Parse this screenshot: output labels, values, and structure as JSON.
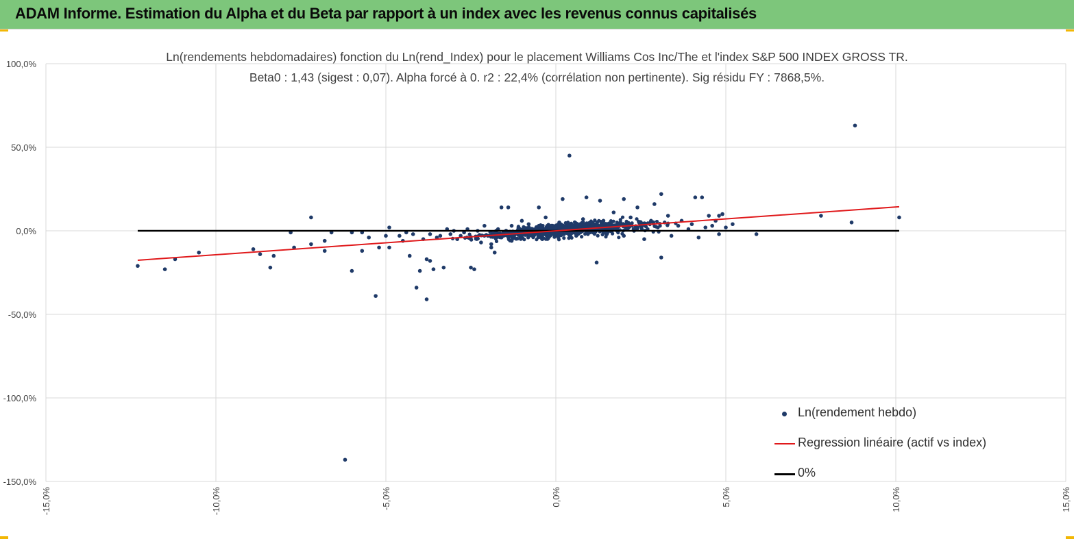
{
  "header": {
    "title": "ADAM Informe. Estimation du Alpha et du Beta par rapport à un index avec les revenus connus capitalisés"
  },
  "colors": {
    "banner": "#7dc67b",
    "accent_corner": "#f2b705",
    "points": "#1f3a68",
    "regression": "#e0191b",
    "zero_line": "#000000",
    "grid": "#d9d9d9"
  },
  "chart_data": {
    "type": "scatter",
    "title_line1": "Ln(rendements hebdomadaires) fonction du Ln(rend_Index) pour le placement Williams Cos Inc/The et l'index S&P 500 INDEX GROSS TR.",
    "title_line2": "Beta0 : 1,43 (sigest : 0,07). Alpha forcé à 0. r2 : 22,4% (corrélation non pertinente). Sig résidu FY : 7868,5%.",
    "xlim": [
      -15,
      15
    ],
    "ylim": [
      -150,
      100
    ],
    "x_ticks": [
      -15,
      -10,
      -5,
      0,
      5,
      10,
      15
    ],
    "y_ticks": [
      100,
      50,
      0,
      -50,
      -100,
      -150
    ],
    "x_tick_labels": [
      "-15,0%",
      "-10,0%",
      "-5,0%",
      "0,0%",
      "5,0%",
      "10,0%",
      "15,0%"
    ],
    "y_tick_labels": [
      "100,0%",
      "50,0%",
      "0,0%",
      "-50,0%",
      "-100,0%",
      "-150,0%"
    ],
    "series": [
      {
        "name": "Ln(rendement hebdo)",
        "kind": "scatter",
        "points": [
          [
            -12.3,
            -21
          ],
          [
            -11.5,
            -23
          ],
          [
            -11.2,
            -17
          ],
          [
            -10.5,
            -13
          ],
          [
            -8.9,
            -11
          ],
          [
            -8.7,
            -14
          ],
          [
            -8.4,
            -22
          ],
          [
            -8.3,
            -15
          ],
          [
            -7.8,
            -1
          ],
          [
            -7.7,
            -10
          ],
          [
            -7.2,
            8
          ],
          [
            -7.2,
            -8
          ],
          [
            -6.8,
            -6
          ],
          [
            -6.8,
            -12
          ],
          [
            -6.6,
            -1
          ],
          [
            -6.0,
            -1
          ],
          [
            -6.0,
            -24
          ],
          [
            -5.7,
            -12
          ],
          [
            -5.7,
            -1
          ],
          [
            -5.5,
            -4
          ],
          [
            -5.3,
            -39
          ],
          [
            -5.2,
            -10
          ],
          [
            -5.0,
            -3
          ],
          [
            -4.9,
            -10
          ],
          [
            -4.9,
            2
          ],
          [
            -4.6,
            -3
          ],
          [
            -4.5,
            -6
          ],
          [
            -4.4,
            -1
          ],
          [
            -4.3,
            -15
          ],
          [
            -4.2,
            -2
          ],
          [
            -4.1,
            -34
          ],
          [
            -4.0,
            -24
          ],
          [
            -3.9,
            -5
          ],
          [
            -3.8,
            -17
          ],
          [
            -3.8,
            -41
          ],
          [
            -3.7,
            -2
          ],
          [
            -3.7,
            -18
          ],
          [
            -3.6,
            -23
          ],
          [
            -3.5,
            -4
          ],
          [
            -3.4,
            -3
          ],
          [
            -3.3,
            -22
          ],
          [
            -3.2,
            1
          ],
          [
            -3.1,
            -2
          ],
          [
            -3.0,
            0
          ],
          [
            -2.9,
            -5
          ],
          [
            -2.8,
            -3
          ],
          [
            -2.7,
            -1
          ],
          [
            -2.6,
            1
          ],
          [
            -2.5,
            -22
          ],
          [
            -2.5,
            -5
          ],
          [
            -2.4,
            -23
          ],
          [
            -2.3,
            0
          ],
          [
            -2.2,
            -7
          ],
          [
            -2.1,
            3
          ],
          [
            -2.0,
            -3
          ],
          [
            -1.9,
            -10
          ],
          [
            -1.9,
            -8
          ],
          [
            -1.8,
            -13
          ],
          [
            -1.7,
            1
          ],
          [
            -1.6,
            -4
          ],
          [
            -1.6,
            14
          ],
          [
            -1.4,
            14
          ],
          [
            -1.5,
            -2
          ],
          [
            -1.3,
            3
          ],
          [
            -1.3,
            -6
          ],
          [
            -1.2,
            -1
          ],
          [
            -1.1,
            2
          ],
          [
            -1.0,
            6
          ],
          [
            -1.0,
            -3
          ],
          [
            -0.9,
            1
          ],
          [
            -0.8,
            4
          ],
          [
            -0.7,
            -2
          ],
          [
            -0.6,
            0
          ],
          [
            -0.5,
            3
          ],
          [
            -0.5,
            14
          ],
          [
            -0.4,
            -5
          ],
          [
            -0.3,
            8
          ],
          [
            -0.2,
            1
          ],
          [
            -0.1,
            -1
          ],
          [
            0.0,
            2
          ],
          [
            0.1,
            5
          ],
          [
            0.2,
            19
          ],
          [
            0.2,
            -2
          ],
          [
            0.3,
            1
          ],
          [
            0.4,
            45
          ],
          [
            0.5,
            3
          ],
          [
            0.6,
            -3
          ],
          [
            0.7,
            0
          ],
          [
            0.8,
            7
          ],
          [
            0.9,
            2
          ],
          [
            0.9,
            20
          ],
          [
            1.0,
            -1
          ],
          [
            1.1,
            4
          ],
          [
            1.2,
            -19
          ],
          [
            1.3,
            18
          ],
          [
            1.3,
            1
          ],
          [
            1.4,
            6
          ],
          [
            1.5,
            -2
          ],
          [
            1.6,
            3
          ],
          [
            1.7,
            11
          ],
          [
            1.8,
            0
          ],
          [
            1.9,
            5
          ],
          [
            2.0,
            19
          ],
          [
            2.0,
            -3
          ],
          [
            2.1,
            2
          ],
          [
            2.2,
            8
          ],
          [
            2.3,
            0
          ],
          [
            2.4,
            14
          ],
          [
            2.5,
            3
          ],
          [
            2.6,
            -5
          ],
          [
            2.7,
            1
          ],
          [
            2.8,
            6
          ],
          [
            2.9,
            16
          ],
          [
            3.1,
            22
          ],
          [
            3.1,
            -16
          ],
          [
            3.0,
            2
          ],
          [
            3.2,
            5
          ],
          [
            3.3,
            9
          ],
          [
            3.4,
            -3
          ],
          [
            3.6,
            3
          ],
          [
            3.7,
            6
          ],
          [
            3.9,
            1
          ],
          [
            4.0,
            4
          ],
          [
            4.1,
            20
          ],
          [
            4.2,
            -4
          ],
          [
            4.3,
            20
          ],
          [
            4.4,
            2
          ],
          [
            4.5,
            9
          ],
          [
            4.6,
            3
          ],
          [
            4.7,
            6
          ],
          [
            4.8,
            -2
          ],
          [
            4.8,
            9
          ],
          [
            4.9,
            10
          ],
          [
            5.0,
            2
          ],
          [
            5.2,
            4
          ],
          [
            5.9,
            -2
          ],
          [
            7.8,
            9
          ],
          [
            8.7,
            5
          ],
          [
            8.8,
            63
          ],
          [
            10.1,
            8
          ],
          [
            -6.2,
            -137
          ]
        ],
        "cloud_note": "dense cluster between -4% and +5%"
      },
      {
        "name": "Regression linéaire (actif vs index)",
        "kind": "line",
        "x": [
          -12.3,
          10.1
        ],
        "y": [
          -17.6,
          14.4
        ]
      },
      {
        "name": "0%",
        "kind": "line",
        "x": [
          -12.3,
          10.1
        ],
        "y": [
          0,
          0
        ]
      }
    ],
    "legend_position": "bottom-right",
    "grid": true
  }
}
